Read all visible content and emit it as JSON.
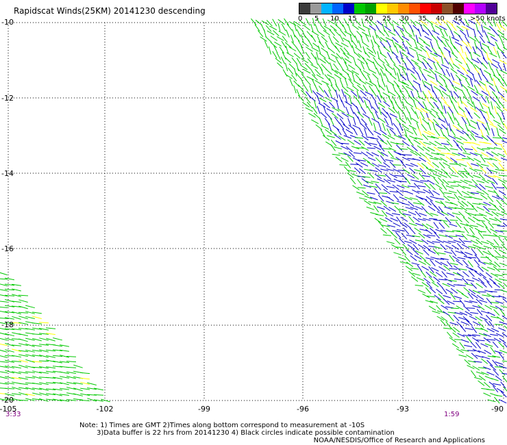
{
  "title": "Rapidscat Winds(25KM) 20141230 descending",
  "legend": {
    "colors": [
      "#3c3c3c",
      "#9a9a9a",
      "#00b4ff",
      "#0064ff",
      "#0000c8",
      "#00c800",
      "#00a000",
      "#ffff00",
      "#ffc800",
      "#ff8c00",
      "#ff5000",
      "#ff0000",
      "#c80000",
      "#8c5028",
      "#500000",
      "#ff00ff",
      "#b400ff",
      "#500096"
    ],
    "labels": [
      "0",
      "5",
      "10",
      "15",
      "20",
      "25",
      "30",
      "35",
      "40",
      "45",
      ">50 knots"
    ]
  },
  "axes": {
    "y_labels": [
      "-10",
      "-12",
      "-14",
      "-16",
      "-18",
      "-20"
    ],
    "x_labels": [
      "-105",
      "-102",
      "-99",
      "-96",
      "-93",
      "-90"
    ]
  },
  "times": {
    "left": "3:33",
    "right": "1:59"
  },
  "notes": {
    "line1": "Note: 1) Times are GMT 2)Times along bottom correspond to measurement at -10S",
    "line2": "3)Data buffer is 22 hrs from 20141230 4) Black circles indicate possible contamination"
  },
  "credit": "NOAA/NESDIS/Office of Research and Applications",
  "colors": {
    "green": "#00c800",
    "blue": "#0000c8",
    "yellow": "#ffff00",
    "grid": "#000000"
  }
}
